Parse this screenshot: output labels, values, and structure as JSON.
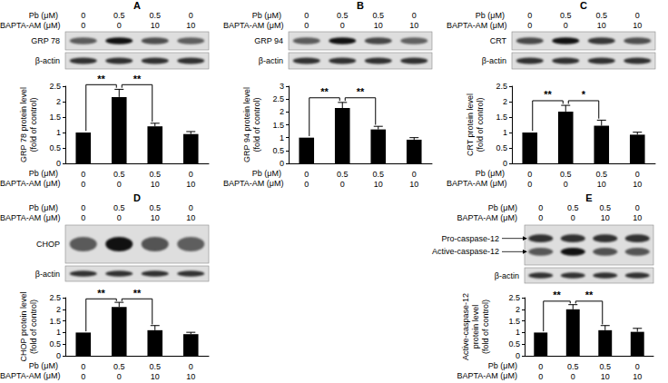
{
  "chart_data": [
    {
      "type": "bar",
      "title": "A",
      "conditions": [
        {
          "label": "Pb (μM)",
          "values": [
            0,
            0.5,
            0.5,
            0
          ]
        },
        {
          "label": "BAPTA-AM (μM)",
          "values": [
            0,
            0,
            10,
            10
          ]
        }
      ],
      "blots": [
        {
          "labels": [
            "GRP 78"
          ]
        },
        {
          "labels": [
            "β-actin"
          ]
        }
      ],
      "ylabel": "GRP 78 protein level\n(fold of control)",
      "values": [
        1,
        2.15,
        1.2,
        0.95
      ],
      "errors": [
        0,
        0.25,
        0.1,
        0.08
      ],
      "color": "#000000",
      "ylim": [
        0,
        2.5
      ],
      "yticks": [
        0,
        0.5,
        1,
        1.5,
        2,
        2.5
      ],
      "grid": false,
      "significance": [
        {
          "from": 0,
          "to": 1,
          "label": "**"
        },
        {
          "from": 1,
          "to": 2,
          "label": "**"
        }
      ]
    },
    {
      "type": "bar",
      "title": "B",
      "conditions": [
        {
          "label": "Pb (μM)",
          "values": [
            0,
            0.5,
            0.5,
            0
          ]
        },
        {
          "label": "BAPTA-AM (μM)",
          "values": [
            0,
            0,
            10,
            10
          ]
        }
      ],
      "blots": [
        {
          "labels": [
            "GRP 94"
          ]
        },
        {
          "labels": [
            "β-actin"
          ]
        }
      ],
      "ylabel": "GRP 94 protein level\n(fold of control)",
      "values": [
        1,
        2.15,
        1.32,
        0.92
      ],
      "errors": [
        0,
        0.22,
        0.12,
        0.08
      ],
      "color": "#000000",
      "ylim": [
        0,
        3
      ],
      "yticks": [
        0,
        0.5,
        1,
        1.5,
        2,
        2.5,
        3
      ],
      "grid": false,
      "significance": [
        {
          "from": 0,
          "to": 1,
          "label": "**"
        },
        {
          "from": 1,
          "to": 2,
          "label": "**"
        }
      ]
    },
    {
      "type": "bar",
      "title": "C",
      "conditions": [
        {
          "label": "Pb (μM)",
          "values": [
            0,
            0.5,
            0.5,
            0
          ]
        },
        {
          "label": "BAPTA-AM (μM)",
          "values": [
            0,
            0,
            10,
            10
          ]
        }
      ],
      "blots": [
        {
          "labels": [
            "CRT"
          ]
        },
        {
          "labels": [
            "β-actin"
          ]
        }
      ],
      "ylabel": "CRT protein level\n(fold of control)",
      "values": [
        1,
        1.68,
        1.22,
        0.93
      ],
      "errors": [
        0,
        0.2,
        0.18,
        0.08
      ],
      "color": "#000000",
      "ylim": [
        0,
        2.5
      ],
      "yticks": [
        0,
        0.5,
        1,
        1.5,
        2,
        2.5
      ],
      "grid": false,
      "significance": [
        {
          "from": 0,
          "to": 1,
          "label": "**"
        },
        {
          "from": 1,
          "to": 2,
          "label": "*"
        }
      ]
    },
    {
      "type": "bar",
      "title": "D",
      "conditions": [
        {
          "label": "Pb (μM)",
          "values": [
            0,
            0.5,
            0.5,
            0
          ]
        },
        {
          "label": "BAPTA-AM (μM)",
          "values": [
            0,
            0,
            10,
            10
          ]
        }
      ],
      "blots": [
        {
          "labels": [
            "CHOP"
          ]
        },
        {
          "labels": [
            "β-actin"
          ]
        }
      ],
      "ylabel": "CHOP protein level\n(fold of control)",
      "values": [
        1,
        2.1,
        1.1,
        0.93
      ],
      "errors": [
        0,
        0.2,
        0.2,
        0.08
      ],
      "color": "#000000",
      "ylim": [
        0,
        2.5
      ],
      "yticks": [
        0,
        0.5,
        1,
        1.5,
        2,
        2.5
      ],
      "grid": false,
      "significance": [
        {
          "from": 0,
          "to": 1,
          "label": "**"
        },
        {
          "from": 1,
          "to": 2,
          "label": "**"
        }
      ]
    },
    {
      "type": "bar",
      "title": "E",
      "conditions": [
        {
          "label": "Pb (μM)",
          "values": [
            0,
            0.5,
            0.5,
            0
          ]
        },
        {
          "label": "BAPTA-AM (μM)",
          "values": [
            0,
            0,
            10,
            10
          ]
        }
      ],
      "blots": [
        {
          "labels": [
            "Pro-caspase-12",
            "Active-caspase-12"
          ]
        },
        {
          "labels": [
            "β-actin"
          ]
        }
      ],
      "ylabel": "Active-caspase-12\nprotein level\n(fold of control)",
      "values": [
        1,
        2.0,
        1.1,
        1.03
      ],
      "errors": [
        0,
        0.2,
        0.2,
        0.15
      ],
      "color": "#000000",
      "ylim": [
        0,
        2.5
      ],
      "yticks": [
        0,
        0.5,
        1,
        1.5,
        2,
        2.5
      ],
      "grid": false,
      "significance": [
        {
          "from": 0,
          "to": 1,
          "label": "**"
        },
        {
          "from": 1,
          "to": 2,
          "label": "**"
        }
      ]
    }
  ]
}
